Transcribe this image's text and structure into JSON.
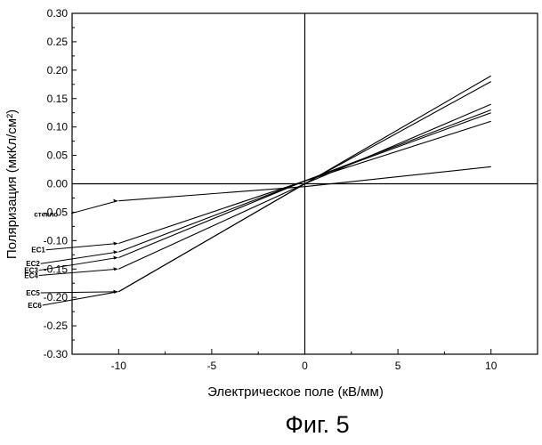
{
  "chart_data": {
    "type": "line",
    "title": "",
    "xlabel": "Электрическое поле (кВ/мм)",
    "ylabel": "Поляризация (мкКл/см²)",
    "xlim": [
      -12.5,
      12.5
    ],
    "ylim": [
      -0.3,
      0.3
    ],
    "x_ticks": [
      -10,
      -5,
      0,
      5,
      10
    ],
    "y_ticks": [
      -0.3,
      -0.25,
      -0.2,
      -0.15,
      -0.1,
      -0.05,
      0.0,
      0.05,
      0.1,
      0.15,
      0.2,
      0.25,
      0.3
    ],
    "grid": false,
    "legend": "none",
    "series": [
      {
        "name": "стекло",
        "x": [
          -10,
          0,
          10
        ],
        "y": [
          -0.03,
          -0.005,
          0.03
        ]
      },
      {
        "name": "EC1",
        "x": [
          -10,
          0,
          10
        ],
        "y": [
          -0.105,
          0.005,
          0.11
        ]
      },
      {
        "name": "EC2",
        "x": [
          -10,
          0,
          10
        ],
        "y": [
          -0.12,
          0.005,
          0.125
        ]
      },
      {
        "name": "EC3",
        "x": [
          -10,
          0,
          10
        ],
        "y": [
          -0.13,
          0.005,
          0.13
        ]
      },
      {
        "name": "EC4",
        "x": [
          -10,
          0,
          10
        ],
        "y": [
          -0.15,
          0.0,
          0.14
        ]
      },
      {
        "name": "EC5",
        "x": [
          -10,
          0,
          10
        ],
        "y": [
          -0.19,
          0.0,
          0.18
        ]
      },
      {
        "name": "EC6",
        "x": [
          -10,
          0,
          10
        ],
        "y": [
          -0.19,
          0.0,
          0.19
        ]
      }
    ],
    "annotations": [
      {
        "text": "стекло",
        "series": "стекло"
      },
      {
        "text": "EC1",
        "series": "EC1"
      },
      {
        "text": "EC2",
        "series": "EC2"
      },
      {
        "text": "EC3",
        "series": "EC3"
      },
      {
        "text": "EC4",
        "series": "EC4"
      },
      {
        "text": "EC5",
        "series": "EC5"
      },
      {
        "text": "EC6",
        "series": "EC6"
      }
    ]
  },
  "caption": "Фиг. 5"
}
